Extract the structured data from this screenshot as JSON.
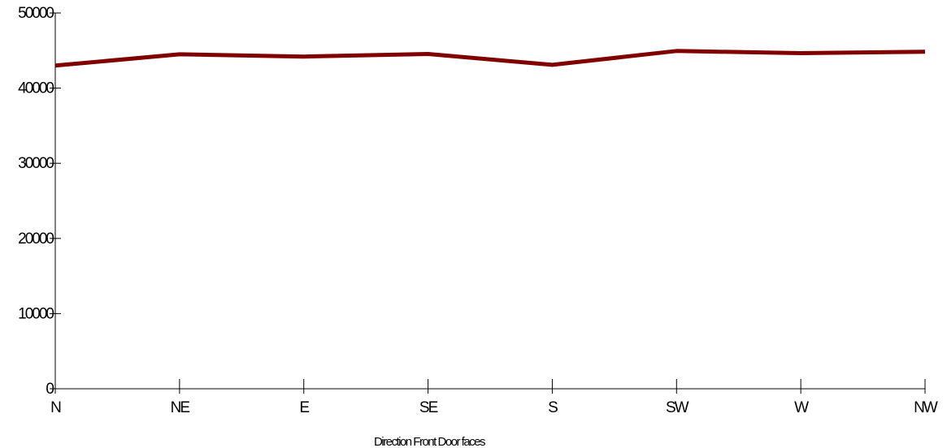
{
  "chart_data": {
    "type": "line",
    "title": "",
    "xlabel": "Direction Front Door faces",
    "ylabel": "",
    "categories": [
      "N",
      "NE",
      "E",
      "SE",
      "S",
      "SW",
      "W",
      "NW"
    ],
    "series": [
      {
        "values": [
          43000,
          44500,
          44200,
          44550,
          43100,
          44950,
          44650,
          44850
        ],
        "color": "#800000"
      }
    ],
    "yticks": [
      "0",
      "10000",
      "20000",
      "30000",
      "40000",
      "50000"
    ],
    "ylim": [
      0,
      50000
    ],
    "grid": false,
    "legend": "none"
  }
}
